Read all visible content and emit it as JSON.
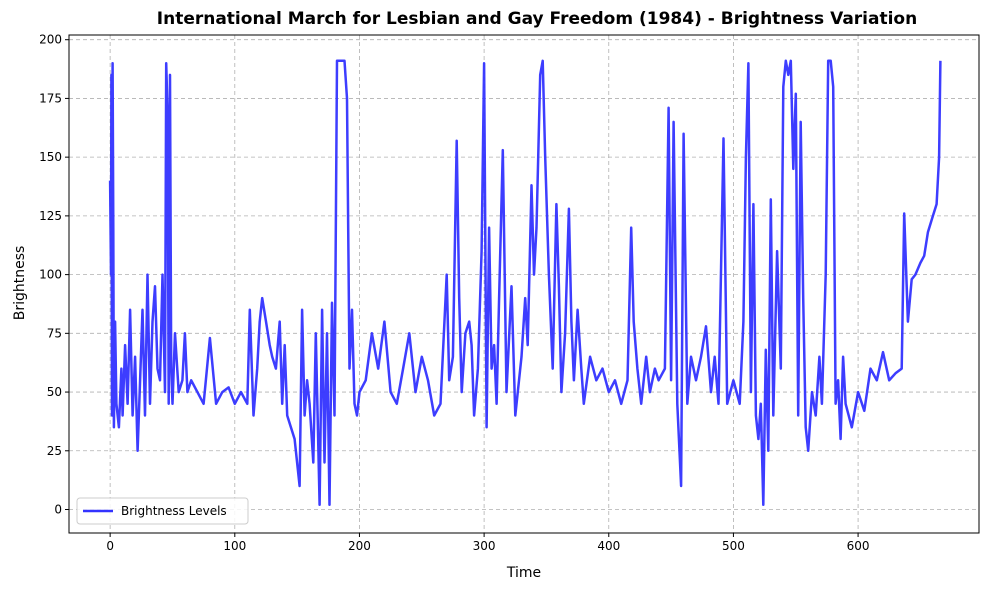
{
  "chart_data": {
    "type": "line",
    "title": "International March for Lesbian and Gay Freedom (1984) - Brightness Variation",
    "xlabel": "Time",
    "ylabel": "Brightness",
    "xlim": [
      -33,
      697
    ],
    "ylim": [
      -10,
      202
    ],
    "x_ticks": [
      0,
      100,
      200,
      300,
      400,
      500,
      600
    ],
    "y_ticks": [
      0,
      25,
      50,
      75,
      100,
      125,
      150,
      175,
      200
    ],
    "grid": true,
    "legend_position": "lower-left",
    "series": [
      {
        "name": "Brightness Levels",
        "color": "#3333ff",
        "points": [
          [
            0,
            140
          ],
          [
            0.7,
            100
          ],
          [
            1,
            185
          ],
          [
            1.5,
            40
          ],
          [
            2,
            190
          ],
          [
            2.5,
            120
          ],
          [
            3,
            35
          ],
          [
            4,
            80
          ],
          [
            5,
            45
          ],
          [
            7,
            35
          ],
          [
            9,
            60
          ],
          [
            10,
            40
          ],
          [
            12,
            70
          ],
          [
            14,
            45
          ],
          [
            16,
            85
          ],
          [
            18,
            40
          ],
          [
            20,
            65
          ],
          [
            22,
            25
          ],
          [
            24,
            55
          ],
          [
            26,
            85
          ],
          [
            28,
            40
          ],
          [
            30,
            100
          ],
          [
            32,
            45
          ],
          [
            34,
            80
          ],
          [
            36,
            95
          ],
          [
            38,
            60
          ],
          [
            40,
            55
          ],
          [
            42,
            100
          ],
          [
            44,
            50
          ],
          [
            45,
            190
          ],
          [
            46,
            170
          ],
          [
            47,
            45
          ],
          [
            48,
            185
          ],
          [
            49,
            60
          ],
          [
            50,
            45
          ],
          [
            52,
            75
          ],
          [
            55,
            50
          ],
          [
            58,
            55
          ],
          [
            60,
            75
          ],
          [
            62,
            50
          ],
          [
            65,
            55
          ],
          [
            70,
            50
          ],
          [
            75,
            45
          ],
          [
            80,
            73
          ],
          [
            85,
            45
          ],
          [
            90,
            50
          ],
          [
            95,
            52
          ],
          [
            100,
            45
          ],
          [
            105,
            50
          ],
          [
            110,
            45
          ],
          [
            112,
            85
          ],
          [
            115,
            40
          ],
          [
            118,
            60
          ],
          [
            120,
            80
          ],
          [
            122,
            90
          ],
          [
            125,
            80
          ],
          [
            128,
            70
          ],
          [
            130,
            65
          ],
          [
            133,
            60
          ],
          [
            136,
            80
          ],
          [
            138,
            45
          ],
          [
            140,
            70
          ],
          [
            142,
            40
          ],
          [
            145,
            35
          ],
          [
            148,
            30
          ],
          [
            150,
            20
          ],
          [
            152,
            10
          ],
          [
            154,
            85
          ],
          [
            156,
            40
          ],
          [
            158,
            55
          ],
          [
            160,
            45
          ],
          [
            163,
            20
          ],
          [
            165,
            75
          ],
          [
            168,
            2
          ],
          [
            170,
            85
          ],
          [
            172,
            20
          ],
          [
            174,
            75
          ],
          [
            176,
            2
          ],
          [
            178,
            88
          ],
          [
            180,
            40
          ],
          [
            182,
            191
          ],
          [
            184,
            191
          ],
          [
            186,
            191
          ],
          [
            188,
            191
          ],
          [
            190,
            175
          ],
          [
            192,
            60
          ],
          [
            194,
            85
          ],
          [
            196,
            45
          ],
          [
            198,
            40
          ],
          [
            200,
            50
          ],
          [
            205,
            55
          ],
          [
            210,
            75
          ],
          [
            215,
            60
          ],
          [
            220,
            80
          ],
          [
            225,
            50
          ],
          [
            230,
            45
          ],
          [
            235,
            60
          ],
          [
            240,
            75
          ],
          [
            245,
            50
          ],
          [
            250,
            65
          ],
          [
            255,
            55
          ],
          [
            260,
            40
          ],
          [
            265,
            45
          ],
          [
            270,
            100
          ],
          [
            272,
            55
          ],
          [
            275,
            65
          ],
          [
            278,
            157
          ],
          [
            280,
            90
          ],
          [
            282,
            50
          ],
          [
            285,
            75
          ],
          [
            288,
            80
          ],
          [
            290,
            70
          ],
          [
            292,
            40
          ],
          [
            295,
            60
          ],
          [
            298,
            110
          ],
          [
            300,
            190
          ],
          [
            302,
            35
          ],
          [
            304,
            120
          ],
          [
            306,
            60
          ],
          [
            308,
            70
          ],
          [
            310,
            45
          ],
          [
            312,
            90
          ],
          [
            315,
            153
          ],
          [
            318,
            50
          ],
          [
            322,
            95
          ],
          [
            325,
            40
          ],
          [
            330,
            65
          ],
          [
            333,
            90
          ],
          [
            335,
            70
          ],
          [
            338,
            138
          ],
          [
            340,
            100
          ],
          [
            342,
            120
          ],
          [
            345,
            185
          ],
          [
            347,
            191
          ],
          [
            349,
            150
          ],
          [
            352,
            100
          ],
          [
            355,
            60
          ],
          [
            358,
            130
          ],
          [
            360,
            95
          ],
          [
            362,
            50
          ],
          [
            365,
            75
          ],
          [
            368,
            128
          ],
          [
            370,
            80
          ],
          [
            372,
            55
          ],
          [
            375,
            85
          ],
          [
            378,
            60
          ],
          [
            380,
            45
          ],
          [
            385,
            65
          ],
          [
            390,
            55
          ],
          [
            395,
            60
          ],
          [
            400,
            50
          ],
          [
            405,
            55
          ],
          [
            410,
            45
          ],
          [
            415,
            55
          ],
          [
            418,
            120
          ],
          [
            420,
            80
          ],
          [
            423,
            60
          ],
          [
            426,
            45
          ],
          [
            430,
            65
          ],
          [
            433,
            50
          ],
          [
            437,
            60
          ],
          [
            440,
            55
          ],
          [
            445,
            60
          ],
          [
            448,
            171
          ],
          [
            450,
            55
          ],
          [
            452,
            165
          ],
          [
            455,
            45
          ],
          [
            458,
            10
          ],
          [
            460,
            160
          ],
          [
            463,
            45
          ],
          [
            466,
            65
          ],
          [
            470,
            55
          ],
          [
            474,
            65
          ],
          [
            478,
            78
          ],
          [
            482,
            50
          ],
          [
            485,
            65
          ],
          [
            488,
            45
          ],
          [
            492,
            158
          ],
          [
            495,
            45
          ],
          [
            500,
            55
          ],
          [
            505,
            45
          ],
          [
            508,
            80
          ],
          [
            510,
            150
          ],
          [
            512,
            190
          ],
          [
            514,
            50
          ],
          [
            516,
            130
          ],
          [
            518,
            40
          ],
          [
            520,
            30
          ],
          [
            522,
            45
          ],
          [
            524,
            2
          ],
          [
            526,
            68
          ],
          [
            528,
            25
          ],
          [
            530,
            132
          ],
          [
            532,
            40
          ],
          [
            535,
            110
          ],
          [
            538,
            60
          ],
          [
            540,
            180
          ],
          [
            542,
            191
          ],
          [
            544,
            185
          ],
          [
            546,
            191
          ],
          [
            548,
            145
          ],
          [
            550,
            177
          ],
          [
            552,
            40
          ],
          [
            554,
            165
          ],
          [
            556,
            90
          ],
          [
            558,
            35
          ],
          [
            560,
            25
          ],
          [
            563,
            50
          ],
          [
            566,
            40
          ],
          [
            569,
            65
          ],
          [
            571,
            45
          ],
          [
            574,
            100
          ],
          [
            576,
            191
          ],
          [
            578,
            191
          ],
          [
            580,
            180
          ],
          [
            582,
            45
          ],
          [
            584,
            55
          ],
          [
            586,
            30
          ],
          [
            588,
            65
          ],
          [
            590,
            45
          ],
          [
            595,
            35
          ],
          [
            600,
            50
          ],
          [
            605,
            42
          ],
          [
            610,
            60
          ],
          [
            615,
            55
          ],
          [
            620,
            67
          ],
          [
            625,
            55
          ],
          [
            630,
            58
          ],
          [
            635,
            60
          ],
          [
            637,
            126
          ],
          [
            640,
            80
          ],
          [
            643,
            98
          ],
          [
            646,
            100
          ],
          [
            650,
            105
          ],
          [
            653,
            108
          ],
          [
            656,
            118
          ],
          [
            660,
            125
          ],
          [
            663,
            130
          ],
          [
            665,
            150
          ],
          [
            666,
            191
          ]
        ]
      }
    ]
  }
}
